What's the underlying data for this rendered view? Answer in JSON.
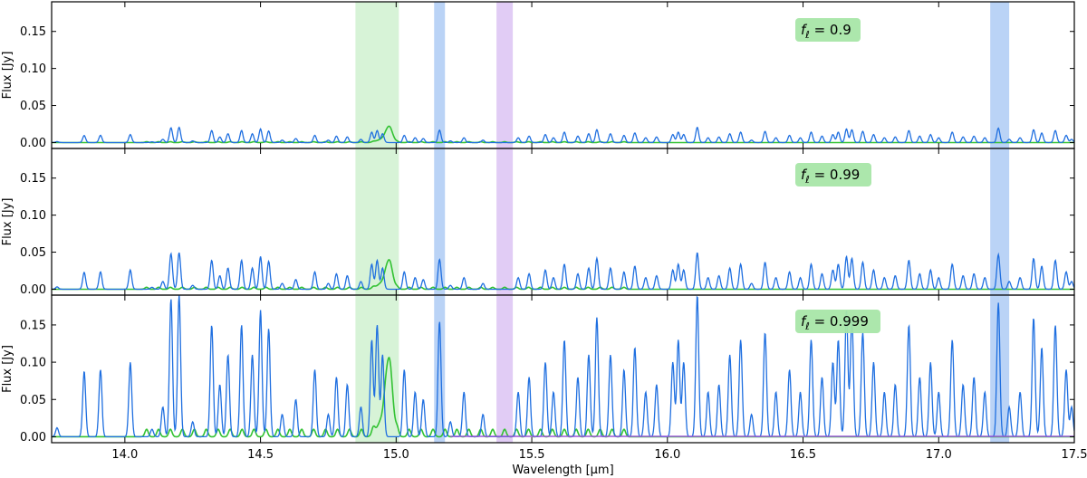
{
  "chart_data": {
    "type": "line",
    "xlabel": "Wavelength [μm]",
    "ylabel": "Flux [Jy]",
    "xlim": [
      13.73,
      17.5
    ],
    "ylim": [
      -0.008,
      0.19
    ],
    "xticks": [
      "14.0",
      "14.5",
      "15.0",
      "15.5",
      "16.0",
      "16.5",
      "17.0",
      "17.5"
    ],
    "xtick_values": [
      14.0,
      14.5,
      15.0,
      15.5,
      16.0,
      16.5,
      17.0,
      17.5
    ],
    "yticks": [
      "0.00",
      "0.05",
      "0.10",
      "0.15"
    ],
    "ytick_values": [
      0.0,
      0.05,
      0.1,
      0.15
    ],
    "grid": false,
    "colors": {
      "blue_series": "#1f6fe0",
      "green_series": "#33c233",
      "purple_series": "#9b59d6",
      "green_band": "#c9efc9",
      "blue_band": "#a9c8f4",
      "purple_band": "#d9bff2",
      "annotation_box": "#a8e6a8"
    },
    "bands": [
      {
        "color": "green",
        "xmin": 14.85,
        "xmax": 15.01
      },
      {
        "color": "blue",
        "xmin": 15.14,
        "xmax": 15.18
      },
      {
        "color": "purple",
        "xmin": 15.37,
        "xmax": 15.43
      },
      {
        "color": "blue",
        "xmin": 17.19,
        "xmax": 17.26
      }
    ],
    "panels": [
      {
        "label_prefix": "f",
        "label_sub": "ℓ",
        "label_value": "= 0.9",
        "scale": 0.108,
        "green_peak": 0.02
      },
      {
        "label_prefix": "f",
        "label_sub": "ℓ",
        "label_value": "= 0.99",
        "scale": 0.26,
        "green_peak": 0.036
      },
      {
        "label_prefix": "f",
        "label_sub": "ℓ",
        "label_value": "= 0.999",
        "scale": 1.0,
        "green_peak": 0.096
      }
    ],
    "blue_lines": [
      [
        13.75,
        0.012
      ],
      [
        13.85,
        0.088
      ],
      [
        13.91,
        0.09
      ],
      [
        14.02,
        0.1
      ],
      [
        14.1,
        0.01
      ],
      [
        14.14,
        0.04
      ],
      [
        14.17,
        0.185
      ],
      [
        14.2,
        0.19
      ],
      [
        14.25,
        0.02
      ],
      [
        14.32,
        0.15
      ],
      [
        14.35,
        0.07
      ],
      [
        14.38,
        0.11
      ],
      [
        14.43,
        0.15
      ],
      [
        14.47,
        0.11
      ],
      [
        14.5,
        0.17
      ],
      [
        14.53,
        0.145
      ],
      [
        14.58,
        0.03
      ],
      [
        14.63,
        0.05
      ],
      [
        14.7,
        0.09
      ],
      [
        14.75,
        0.03
      ],
      [
        14.78,
        0.08
      ],
      [
        14.82,
        0.07
      ],
      [
        14.87,
        0.04
      ],
      [
        14.91,
        0.13
      ],
      [
        14.93,
        0.15
      ],
      [
        14.95,
        0.11
      ],
      [
        15.03,
        0.09
      ],
      [
        15.07,
        0.06
      ],
      [
        15.1,
        0.05
      ],
      [
        15.16,
        0.155
      ],
      [
        15.2,
        0.02
      ],
      [
        15.25,
        0.06
      ],
      [
        15.32,
        0.03
      ],
      [
        15.45,
        0.06
      ],
      [
        15.49,
        0.08
      ],
      [
        15.55,
        0.1
      ],
      [
        15.58,
        0.06
      ],
      [
        15.62,
        0.13
      ],
      [
        15.67,
        0.08
      ],
      [
        15.71,
        0.11
      ],
      [
        15.74,
        0.16
      ],
      [
        15.79,
        0.11
      ],
      [
        15.84,
        0.09
      ],
      [
        15.88,
        0.12
      ],
      [
        15.92,
        0.06
      ],
      [
        15.96,
        0.07
      ],
      [
        16.02,
        0.1
      ],
      [
        16.04,
        0.13
      ],
      [
        16.06,
        0.1
      ],
      [
        16.11,
        0.19
      ],
      [
        16.15,
        0.06
      ],
      [
        16.19,
        0.07
      ],
      [
        16.23,
        0.11
      ],
      [
        16.27,
        0.13
      ],
      [
        16.31,
        0.03
      ],
      [
        16.36,
        0.14
      ],
      [
        16.4,
        0.06
      ],
      [
        16.45,
        0.09
      ],
      [
        16.49,
        0.06
      ],
      [
        16.53,
        0.13
      ],
      [
        16.57,
        0.08
      ],
      [
        16.61,
        0.1
      ],
      [
        16.63,
        0.13
      ],
      [
        16.66,
        0.17
      ],
      [
        16.68,
        0.16
      ],
      [
        16.72,
        0.14
      ],
      [
        16.76,
        0.1
      ],
      [
        16.8,
        0.06
      ],
      [
        16.84,
        0.07
      ],
      [
        16.89,
        0.15
      ],
      [
        16.93,
        0.08
      ],
      [
        16.97,
        0.1
      ],
      [
        17.0,
        0.06
      ],
      [
        17.05,
        0.13
      ],
      [
        17.09,
        0.07
      ],
      [
        17.13,
        0.08
      ],
      [
        17.17,
        0.06
      ],
      [
        17.22,
        0.18
      ],
      [
        17.26,
        0.04
      ],
      [
        17.3,
        0.06
      ],
      [
        17.35,
        0.16
      ],
      [
        17.38,
        0.12
      ],
      [
        17.43,
        0.15
      ],
      [
        17.47,
        0.09
      ],
      [
        17.49,
        0.04
      ]
    ],
    "green_comb": {
      "start": 14.08,
      "end": 15.85,
      "spacing": 0.044,
      "max": 0.01
    }
  }
}
